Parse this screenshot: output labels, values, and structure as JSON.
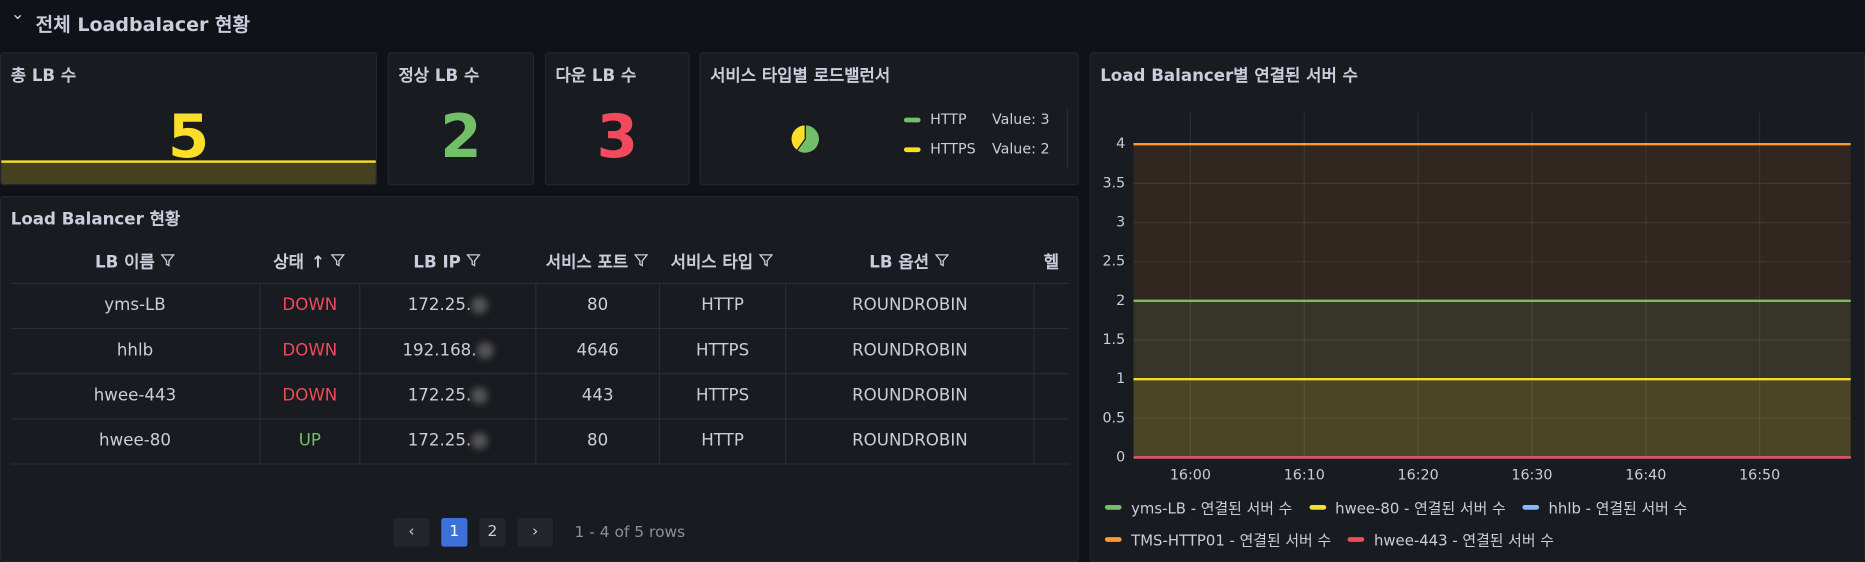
{
  "header": {
    "title": "전체 Loadbalacer 현황"
  },
  "stats": [
    {
      "title": "총 LB 수",
      "value": 5,
      "color": "#fade2a"
    },
    {
      "title": "정상 LB 수",
      "value": 2,
      "color": "#73bf69"
    },
    {
      "title": "다운 LB 수",
      "value": 3,
      "color": "#f2495c"
    }
  ],
  "chart_data": [
    {
      "type": "pie",
      "title": "서비스 타입별 로드밸런서",
      "categories": [
        "HTTP",
        "HTTPS"
      ],
      "values": [
        3,
        2
      ],
      "value_labels": [
        "Value: 3",
        "Value: 2"
      ],
      "colors": [
        "#73bf69",
        "#fade2a"
      ]
    },
    {
      "type": "line",
      "title": "Load Balancer별 연결된 서버 수",
      "x": [
        "15:55",
        "16:58"
      ],
      "xlim": [
        "15:55",
        "16:58"
      ],
      "xticks": [
        "16:00",
        "16:10",
        "16:20",
        "16:30",
        "16:40",
        "16:50"
      ],
      "ylim": [
        0,
        4.4
      ],
      "yticks": [
        0,
        0.5,
        1,
        1.5,
        2,
        2.5,
        3,
        3.5,
        4
      ],
      "grid": true,
      "series": [
        {
          "name": "yms-LB - 연결된 서버 수",
          "color": "#73bf69",
          "values": [
            2,
            2
          ]
        },
        {
          "name": "hwee-80 - 연결된 서버 수",
          "color": "#fade2a",
          "values": [
            1,
            1
          ]
        },
        {
          "name": "hhlb - 연결된 서버 수",
          "color": "#8ab8ff",
          "values": [
            0,
            0
          ]
        },
        {
          "name": "TMS-HTTP01 - 연결된 서버 수",
          "color": "#ff9830",
          "values": [
            4,
            4
          ]
        },
        {
          "name": "hwee-443 - 연결된 서버 수",
          "color": "#f2495c",
          "values": [
            0,
            0
          ]
        }
      ]
    }
  ],
  "table": {
    "title": "Load Balancer 현황",
    "columns": [
      "LB 이름",
      "상태",
      "LB IP",
      "서비스 포트",
      "서비스 타입",
      "LB 옵션",
      "헬"
    ],
    "rows": [
      [
        "yms-LB",
        "DOWN",
        "172.25.",
        80,
        "HTTP",
        "ROUNDROBIN"
      ],
      [
        "hhlb",
        "DOWN",
        "192.168.",
        4646,
        "HTTPS",
        "ROUNDROBIN"
      ],
      [
        "hwee-443",
        "DOWN",
        "172.25.",
        443,
        "HTTPS",
        "ROUNDROBIN"
      ],
      [
        "hwee-80",
        "UP",
        "172.25.",
        80,
        "HTTP",
        "ROUNDROBIN"
      ]
    ],
    "status_colors": {
      "DOWN": "#f2495c",
      "UP": "#73bf69"
    }
  },
  "pagination": {
    "pages": [
      1,
      2
    ],
    "current": 1,
    "summary": "1 - 4 of 5 rows"
  }
}
